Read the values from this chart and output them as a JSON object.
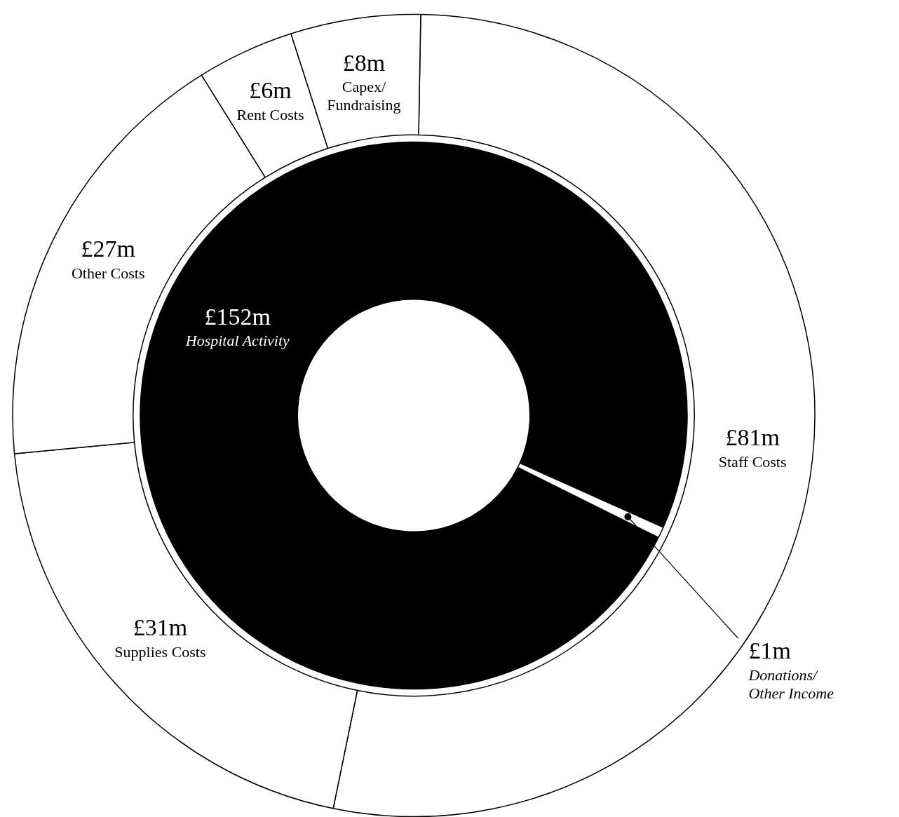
{
  "chart_data": [
    {
      "type": "donut",
      "categories": [
        "Staff Costs",
        "Supplies Costs",
        "Other Costs",
        "Rent Costs",
        "Capex/ Fundraising"
      ],
      "values": [
        81,
        31,
        27,
        6,
        8
      ],
      "value_labels": [
        "£81m",
        "£31m",
        "£27m",
        "£6m",
        "£8m"
      ],
      "colors": [
        "#ffffff",
        "#ffffff",
        "#ffffff",
        "#ffffff",
        "#ffffff"
      ]
    },
    {
      "type": "donut",
      "categories": [
        "Hospital Activity",
        "Donations/ Other Income"
      ],
      "values": [
        152,
        1
      ],
      "value_labels": [
        "£152m",
        "£1m"
      ],
      "colors": [
        "#000000",
        "#ffffff"
      ]
    }
  ]
}
